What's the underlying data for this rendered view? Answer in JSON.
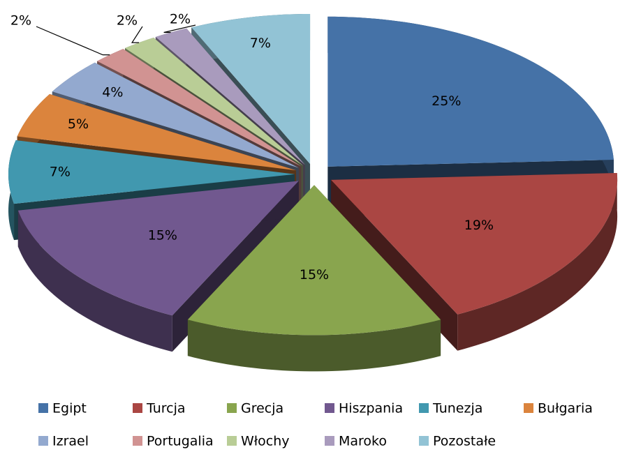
{
  "chart_data": {
    "type": "pie",
    "categories": [
      "Egipt",
      "Turcja",
      "Grecja",
      "Hiszpania",
      "Tunezja",
      "Bułgaria",
      "Izrael",
      "Portugalia",
      "Włochy",
      "Maroko",
      "Pozostałe"
    ],
    "values": [
      25,
      19,
      15,
      15,
      7,
      5,
      4,
      2,
      2,
      2,
      7
    ],
    "value_labels": [
      "25%",
      "19%",
      "15%",
      "15%",
      "7%",
      "5%",
      "4%",
      "2%",
      "2%",
      "2%",
      "7%"
    ],
    "colors": [
      "#4572a7",
      "#aa4643",
      "#89a54e",
      "#71588f",
      "#4198af",
      "#db843d",
      "#93a9cf",
      "#d19392",
      "#b9cd96",
      "#a99bbd",
      "#92c3d5"
    ],
    "legend": "bottom"
  }
}
